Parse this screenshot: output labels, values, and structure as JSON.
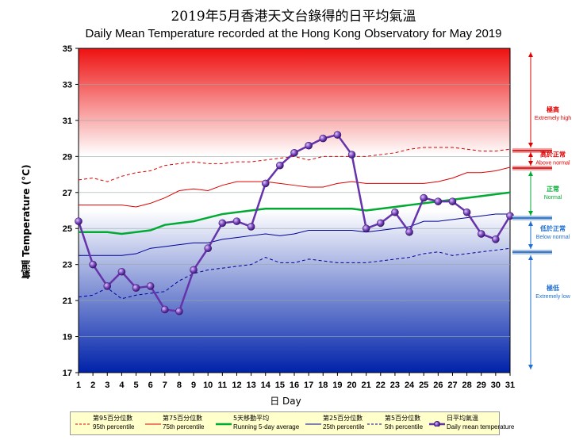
{
  "header": {
    "title_zh": "2019年5月香港天文台錄得的日平均氣溫",
    "title_en": "Daily Mean Temperature recorded at the Hong Kong Observatory for May 2019"
  },
  "axes": {
    "ylabel": "氣溫 Temperature (°C)",
    "xlabel": "日 Day"
  },
  "colors": {
    "daily": "#6633aa",
    "running": "#00aa33",
    "p95": "#dd0000",
    "p75": "#dd0000",
    "p25": "#000099",
    "p5": "#000099",
    "red_arrow": "#dd0000",
    "green_arrow": "#00aa33",
    "blue_arrow": "#1e6fd0"
  },
  "side_labels": [
    {
      "zh": "極高",
      "en": "Extremely high",
      "color": "#dd0000",
      "y": 31.4
    },
    {
      "zh": "高於正常",
      "en": "Above normal",
      "color": "#dd0000",
      "y": 28.9
    },
    {
      "zh": "正常",
      "en": "Normal",
      "color": "#00aa33",
      "y": 27.0
    },
    {
      "zh": "低於正常",
      "en": "Below normal",
      "color": "#1e6fd0",
      "y": 24.8
    },
    {
      "zh": "極低",
      "en": "Extremely low",
      "color": "#1e6fd0",
      "y": 21.5
    }
  ],
  "legend": [
    {
      "zh": "第95百分位數",
      "en": "95th percentile",
      "style": "p95"
    },
    {
      "zh": "第75百分位數",
      "en": "75th percentile",
      "style": "p75"
    },
    {
      "zh": "5天移動平均",
      "en": "Running 5-day average",
      "style": "running"
    },
    {
      "zh": "第25百分位數",
      "en": "25th percentile",
      "style": "p25"
    },
    {
      "zh": "第5百分位數",
      "en": "5th percentile",
      "style": "p5"
    },
    {
      "zh": "日平均氣溫",
      "en": "Daily mean temperature",
      "style": "daily"
    }
  ],
  "chart_data": {
    "type": "line",
    "ylim": [
      17,
      35
    ],
    "yticks": [
      17,
      19,
      21,
      23,
      25,
      27,
      29,
      31,
      33,
      35
    ],
    "x": [
      1,
      2,
      3,
      4,
      5,
      6,
      7,
      8,
      9,
      10,
      11,
      12,
      13,
      14,
      15,
      16,
      17,
      18,
      19,
      20,
      21,
      22,
      23,
      24,
      25,
      26,
      27,
      28,
      29,
      30,
      31
    ],
    "series": [
      {
        "name": "日平均氣溫 Daily mean temperature",
        "key": "daily",
        "values": [
          25.4,
          23.0,
          21.8,
          22.6,
          21.7,
          21.8,
          20.5,
          20.4,
          22.7,
          23.9,
          25.3,
          25.4,
          25.1,
          27.5,
          28.5,
          29.2,
          29.6,
          30.0,
          30.2,
          29.1,
          25.0,
          25.3,
          25.9,
          24.8,
          26.7,
          26.5,
          26.5,
          25.9,
          24.7,
          24.4,
          25.7
        ]
      },
      {
        "name": "5天移動平均 Running 5-day average",
        "key": "running",
        "values": [
          24.8,
          24.8,
          24.8,
          24.7,
          24.8,
          24.9,
          25.2,
          25.3,
          25.4,
          25.6,
          25.8,
          25.9,
          26.0,
          26.1,
          26.1,
          26.1,
          26.1,
          26.1,
          26.1,
          26.1,
          26.0,
          26.1,
          26.2,
          26.3,
          26.4,
          26.5,
          26.6,
          26.7,
          26.8,
          26.9,
          27.0
        ]
      },
      {
        "name": "第95百分位數 95th percentile",
        "key": "p95",
        "values": [
          27.7,
          27.8,
          27.6,
          27.9,
          28.1,
          28.2,
          28.5,
          28.6,
          28.7,
          28.6,
          28.6,
          28.7,
          28.7,
          28.8,
          28.9,
          29.0,
          28.8,
          29.0,
          29.0,
          29.0,
          29.0,
          29.1,
          29.2,
          29.4,
          29.5,
          29.5,
          29.5,
          29.4,
          29.3,
          29.3,
          29.4
        ]
      },
      {
        "name": "第75百分位數 75th percentile",
        "key": "p75",
        "values": [
          26.3,
          26.3,
          26.3,
          26.3,
          26.2,
          26.4,
          26.7,
          27.1,
          27.2,
          27.1,
          27.4,
          27.6,
          27.6,
          27.6,
          27.5,
          27.4,
          27.3,
          27.3,
          27.5,
          27.6,
          27.5,
          27.5,
          27.5,
          27.5,
          27.5,
          27.6,
          27.8,
          28.1,
          28.1,
          28.2,
          28.4
        ]
      },
      {
        "name": "第25百分位數 25th percentile",
        "key": "p25",
        "values": [
          23.5,
          23.5,
          23.5,
          23.5,
          23.6,
          23.9,
          24.0,
          24.1,
          24.2,
          24.2,
          24.4,
          24.5,
          24.6,
          24.7,
          24.6,
          24.7,
          24.9,
          24.9,
          24.9,
          24.9,
          24.8,
          24.9,
          25.0,
          25.1,
          25.4,
          25.4,
          25.5,
          25.6,
          25.7,
          25.8,
          25.8
        ]
      },
      {
        "name": "第5百分位數 5th percentile",
        "key": "p5",
        "values": [
          21.2,
          21.3,
          21.7,
          21.1,
          21.3,
          21.4,
          21.5,
          22.1,
          22.5,
          22.7,
          22.8,
          22.9,
          23.0,
          23.4,
          23.1,
          23.1,
          23.3,
          23.2,
          23.1,
          23.1,
          23.1,
          23.2,
          23.3,
          23.4,
          23.6,
          23.7,
          23.5,
          23.6,
          23.7,
          23.8,
          23.9
        ]
      }
    ],
    "grid": true
  }
}
